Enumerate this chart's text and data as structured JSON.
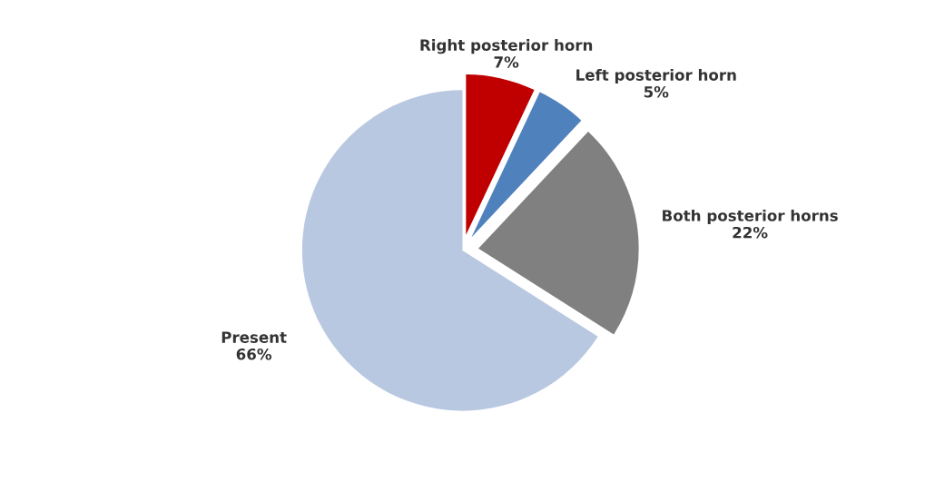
{
  "chart_data": {
    "type": "pie",
    "categories": [
      "Right posterior horn",
      "Left posterior horn",
      "Both posterior horns",
      "Present"
    ],
    "values": [
      7,
      5,
      22,
      66
    ],
    "colors": [
      "#c00000",
      "#4f81bd",
      "#808080",
      "#b9c8e1"
    ],
    "value_labels": [
      "7%",
      "5%",
      "22%",
      "66%"
    ],
    "legend": false
  }
}
